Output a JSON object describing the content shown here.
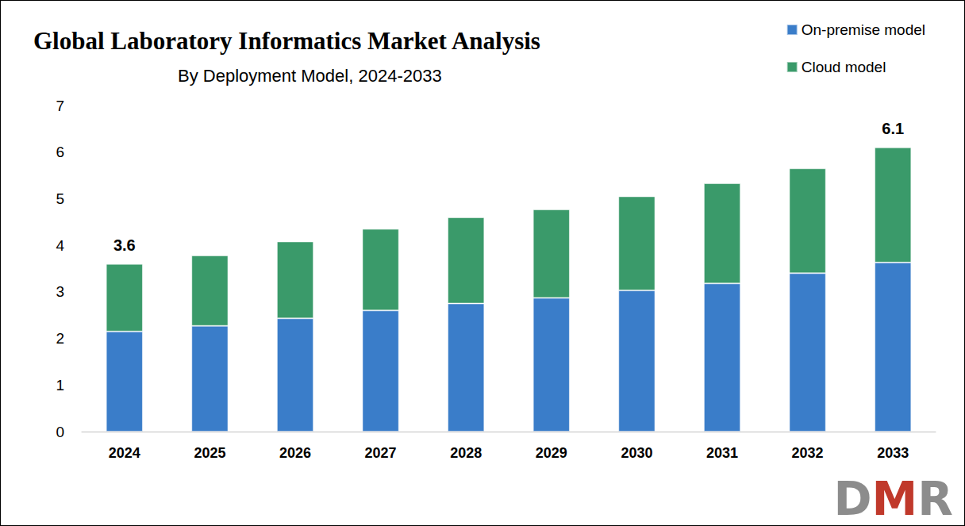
{
  "chart_data": {
    "type": "bar",
    "title": "Global Laboratory Informatics Market Analysis",
    "subtitle": "By Deployment Model, 2024-2033",
    "categories": [
      "2024",
      "2025",
      "2026",
      "2027",
      "2028",
      "2029",
      "2030",
      "2031",
      "2032",
      "2033"
    ],
    "series": [
      {
        "name": "On-premise model",
        "color": "#3a7dc9",
        "values": [
          2.15,
          2.27,
          2.43,
          2.6,
          2.75,
          2.87,
          3.03,
          3.18,
          3.4,
          3.63
        ]
      },
      {
        "name": "Cloud model",
        "color": "#3a9a6a",
        "values": [
          1.45,
          1.51,
          1.65,
          1.75,
          1.85,
          1.9,
          2.02,
          2.15,
          2.25,
          2.47
        ]
      }
    ],
    "stacked": true,
    "ylim": [
      0,
      7
    ],
    "yticks": [
      0,
      1,
      2,
      3,
      4,
      5,
      6,
      7
    ],
    "grid": false,
    "legend": "upper right",
    "annotations": [
      {
        "category": "2024",
        "text": "3.6"
      },
      {
        "category": "2033",
        "text": "6.1"
      }
    ],
    "watermark": "DMR"
  }
}
